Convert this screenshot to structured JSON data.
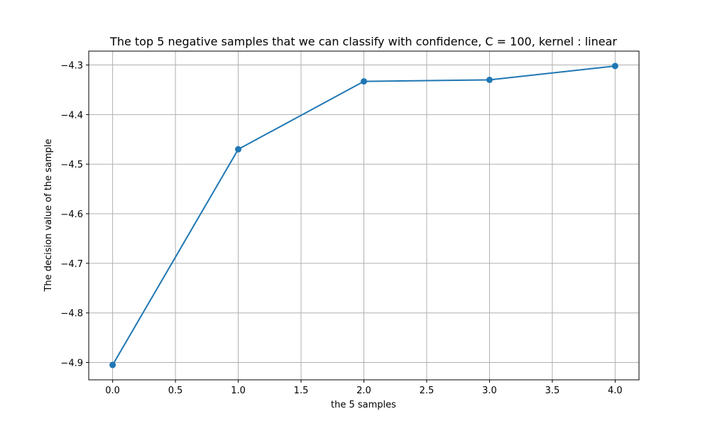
{
  "chart_data": {
    "type": "line",
    "title": "The top 5 negative samples that we can classify with confidence, C = 100, kernel : linear",
    "xlabel": "the 5 samples",
    "ylabel": "The decision value of the sample",
    "x": [
      0,
      1,
      2,
      3,
      4
    ],
    "series": [
      {
        "values": [
          -4.905,
          -4.47,
          -4.333,
          -4.33,
          -4.302
        ],
        "color": "#1f77b4",
        "marker": "circle"
      }
    ],
    "xlim": [
      -0.19,
      4.19
    ],
    "ylim": [
      -4.935,
      -4.272
    ],
    "xticks": [
      0.0,
      0.5,
      1.0,
      1.5,
      2.0,
      2.5,
      3.0,
      3.5,
      4.0
    ],
    "xtick_labels": [
      "0.0",
      "0.5",
      "1.0",
      "1.5",
      "2.0",
      "2.5",
      "3.0",
      "3.5",
      "4.0"
    ],
    "yticks": [
      -4.9,
      -4.8,
      -4.7,
      -4.6,
      -4.5,
      -4.4,
      -4.3
    ],
    "ytick_labels": [
      "−4.9",
      "−4.8",
      "−4.7",
      "−4.6",
      "−4.5",
      "−4.4",
      "−4.3"
    ],
    "grid": true,
    "legend": false
  }
}
